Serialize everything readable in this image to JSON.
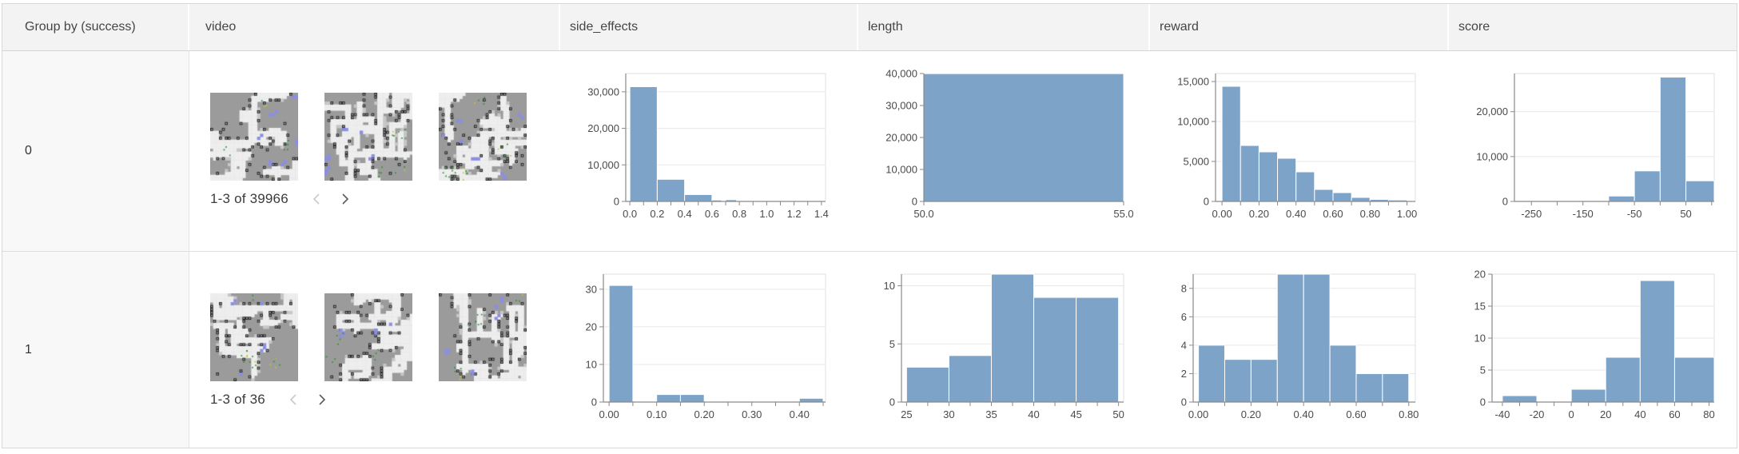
{
  "table": {
    "header": {
      "cells": [
        "Group by (success)",
        "video",
        "side_effects",
        "length",
        "reward",
        "score"
      ]
    }
  },
  "colors": {
    "bar": "#7da3c9",
    "header_bg": "#f3f3f3",
    "group_col_bg": "#f8f8f8",
    "grid": "#e7e7e7",
    "frame": "#e1e1e1",
    "axis": "#8a8a8a",
    "axis_label": "#4a4a4a",
    "thumb_grey": "#9b9b9b",
    "thumb_white": "#eeeeee",
    "thumb_light": "#c7c7c7",
    "thumb_dark": "#262626",
    "thumb_blue": "#8b8ee4",
    "thumb_green": "#2e9030",
    "thumb_yellow": "#c6c636"
  },
  "icons": [
    "chevron-left-icon",
    "chevron-right-icon"
  ],
  "rows": [
    {
      "group_label": "0",
      "video": {
        "pagination": "1-3 of 39966",
        "prev_enabled": false,
        "next_enabled": true,
        "thumb_seeds": [
          3,
          7,
          12
        ]
      },
      "charts": [
        {
          "name": "side_effects",
          "type": "histogram",
          "gutter": 62,
          "ylim": 35000,
          "yticks": [
            {
              "v": 0,
              "label": "0"
            },
            {
              "v": 10000,
              "label": "10,000"
            },
            {
              "v": 20000,
              "label": "20,000"
            },
            {
              "v": 30000,
              "label": "30,000"
            }
          ],
          "xlim": [
            -0.03,
            1.43
          ],
          "xticks": [
            {
              "v": 0.0,
              "label": "0.0"
            },
            {
              "v": 0.2,
              "label": "0.2"
            },
            {
              "v": 0.4,
              "label": "0.4"
            },
            {
              "v": 0.6,
              "label": "0.6"
            },
            {
              "v": 0.8,
              "label": "0.8"
            },
            {
              "v": 1.0,
              "label": "1.0"
            },
            {
              "v": 1.2,
              "label": "1.2"
            },
            {
              "v": 1.4,
              "label": "1.4"
            }
          ],
          "xminor": [
            0.1,
            0.3,
            0.5,
            0.7,
            0.9,
            1.1,
            1.3
          ],
          "bins": [
            [
              0.0,
              0.2,
              31400
            ],
            [
              0.2,
              0.4,
              6050
            ],
            [
              0.4,
              0.6,
              1880
            ],
            [
              0.6,
              0.67,
              380
            ],
            [
              0.7,
              0.78,
              470
            ],
            [
              0.8,
              1.43,
              90
            ]
          ]
        },
        {
          "name": "length",
          "type": "histogram",
          "gutter": 62,
          "ylim": 40000,
          "yticks": [
            {
              "v": 0,
              "label": "0"
            },
            {
              "v": 10000,
              "label": "10,000"
            },
            {
              "v": 20000,
              "label": "20,000"
            },
            {
              "v": 30000,
              "label": "30,000"
            },
            {
              "v": 40000,
              "label": "40,000"
            }
          ],
          "xlim": [
            50,
            55
          ],
          "xticks": [
            {
              "v": 50,
              "label": "50.0"
            },
            {
              "v": 55,
              "label": "55.0"
            }
          ],
          "xminor": [],
          "bins": [
            [
              50,
              55,
              39966
            ]
          ]
        },
        {
          "name": "reward",
          "type": "histogram",
          "gutter": 62,
          "ylim": 16000,
          "yticks": [
            {
              "v": 0,
              "label": "0"
            },
            {
              "v": 5000,
              "label": "5,000"
            },
            {
              "v": 10000,
              "label": "10,000"
            },
            {
              "v": 15000,
              "label": "15,000"
            }
          ],
          "xlim": [
            -0.035,
            1.045
          ],
          "xticks": [
            {
              "v": 0.0,
              "label": "0.00"
            },
            {
              "v": 0.2,
              "label": "0.20"
            },
            {
              "v": 0.4,
              "label": "0.40"
            },
            {
              "v": 0.6,
              "label": "0.60"
            },
            {
              "v": 0.8,
              "label": "0.80"
            },
            {
              "v": 1.0,
              "label": "1.00"
            }
          ],
          "xminor": [
            0.1,
            0.3,
            0.5,
            0.7,
            0.9
          ],
          "bins": [
            [
              0.0,
              0.1,
              14400
            ],
            [
              0.1,
              0.2,
              7000
            ],
            [
              0.2,
              0.3,
              6200
            ],
            [
              0.3,
              0.4,
              5400
            ],
            [
              0.4,
              0.5,
              3700
            ],
            [
              0.5,
              0.6,
              1500
            ],
            [
              0.6,
              0.7,
              1100
            ],
            [
              0.7,
              0.8,
              500
            ],
            [
              0.8,
              0.9,
              250
            ],
            [
              0.9,
              1.0,
              180
            ]
          ]
        },
        {
          "name": "score",
          "type": "histogram",
          "gutter": 62,
          "ylim": 28500,
          "yticks": [
            {
              "v": 0,
              "label": "0"
            },
            {
              "v": 10000,
              "label": "10,000"
            },
            {
              "v": 20000,
              "label": "20,000"
            }
          ],
          "xlim": [
            -283,
            105
          ],
          "xticks": [
            {
              "v": -250,
              "label": "-250"
            },
            {
              "v": -150,
              "label": "-150"
            },
            {
              "v": -50,
              "label": "-50"
            },
            {
              "v": 50,
              "label": "50"
            }
          ],
          "xminor": [
            -200,
            -100,
            0,
            100
          ],
          "bins": [
            [
              -283,
              -250,
              60
            ],
            [
              -250,
              -200,
              80
            ],
            [
              -200,
              -150,
              110
            ],
            [
              -150,
              -100,
              160
            ],
            [
              -100,
              -50,
              1200
            ],
            [
              -50,
              0,
              6800
            ],
            [
              0,
              50,
              27700
            ],
            [
              50,
              105,
              4600
            ]
          ]
        }
      ]
    },
    {
      "group_label": "1",
      "video": {
        "pagination": "1-3 of 36",
        "prev_enabled": false,
        "next_enabled": true,
        "thumb_seeds": [
          21,
          34,
          47
        ]
      },
      "charts": [
        {
          "name": "side_effects",
          "type": "histogram",
          "gutter": 34,
          "ylim": 34,
          "yticks": [
            {
              "v": 0,
              "label": "0"
            },
            {
              "v": 10,
              "label": "10"
            },
            {
              "v": 20,
              "label": "20"
            },
            {
              "v": 30,
              "label": "30"
            }
          ],
          "xlim": [
            -0.012,
            0.455
          ],
          "xticks": [
            {
              "v": 0.0,
              "label": "0.00"
            },
            {
              "v": 0.1,
              "label": "0.10"
            },
            {
              "v": 0.2,
              "label": "0.20"
            },
            {
              "v": 0.3,
              "label": "0.30"
            },
            {
              "v": 0.4,
              "label": "0.40"
            }
          ],
          "xminor": [
            0.05,
            0.15,
            0.25,
            0.35,
            0.45
          ],
          "bins": [
            [
              0.0,
              0.05,
              31
            ],
            [
              0.1,
              0.15,
              2
            ],
            [
              0.15,
              0.2,
              2
            ],
            [
              0.4,
              0.45,
              1
            ]
          ]
        },
        {
          "name": "length",
          "type": "histogram",
          "gutter": 34,
          "ylim": 11,
          "yticks": [
            {
              "v": 0,
              "label": "0"
            },
            {
              "v": 5,
              "label": "5"
            },
            {
              "v": 10,
              "label": "10"
            }
          ],
          "xlim": [
            24.4,
            50.6
          ],
          "xticks": [
            {
              "v": 25,
              "label": "25"
            },
            {
              "v": 30,
              "label": "30"
            },
            {
              "v": 35,
              "label": "35"
            },
            {
              "v": 40,
              "label": "40"
            },
            {
              "v": 45,
              "label": "45"
            },
            {
              "v": 50,
              "label": "50"
            }
          ],
          "xminor": [
            27.5,
            32.5,
            37.5,
            42.5,
            47.5
          ],
          "bins": [
            [
              25,
              30,
              3
            ],
            [
              30,
              35,
              4
            ],
            [
              35,
              40,
              11
            ],
            [
              40,
              45,
              9
            ],
            [
              45,
              50,
              9
            ]
          ]
        },
        {
          "name": "reward",
          "type": "histogram",
          "gutter": 34,
          "ylim": 9,
          "yticks": [
            {
              "v": 0,
              "label": "0"
            },
            {
              "v": 2,
              "label": "2"
            },
            {
              "v": 4,
              "label": "4"
            },
            {
              "v": 6,
              "label": "6"
            },
            {
              "v": 8,
              "label": "8"
            }
          ],
          "xlim": [
            -0.02,
            0.825
          ],
          "xticks": [
            {
              "v": 0.0,
              "label": "0.00"
            },
            {
              "v": 0.2,
              "label": "0.20"
            },
            {
              "v": 0.4,
              "label": "0.40"
            },
            {
              "v": 0.6,
              "label": "0.60"
            },
            {
              "v": 0.8,
              "label": "0.80"
            }
          ],
          "xminor": [
            0.1,
            0.3,
            0.5,
            0.7
          ],
          "bins": [
            [
              0.0,
              0.1,
              4
            ],
            [
              0.1,
              0.2,
              3
            ],
            [
              0.2,
              0.3,
              3
            ],
            [
              0.3,
              0.4,
              9
            ],
            [
              0.4,
              0.5,
              9
            ],
            [
              0.5,
              0.6,
              4
            ],
            [
              0.6,
              0.7,
              2
            ],
            [
              0.7,
              0.8,
              2
            ]
          ]
        },
        {
          "name": "score",
          "type": "histogram",
          "gutter": 34,
          "ylim": 20,
          "yticks": [
            {
              "v": 0,
              "label": "0"
            },
            {
              "v": 5,
              "label": "5"
            },
            {
              "v": 10,
              "label": "10"
            },
            {
              "v": 15,
              "label": "15"
            },
            {
              "v": 20,
              "label": "20"
            }
          ],
          "xlim": [
            -46,
            83
          ],
          "xticks": [
            {
              "v": -40,
              "label": "-40"
            },
            {
              "v": -20,
              "label": "-20"
            },
            {
              "v": 0,
              "label": "0"
            },
            {
              "v": 20,
              "label": "20"
            },
            {
              "v": 40,
              "label": "40"
            },
            {
              "v": 60,
              "label": "60"
            },
            {
              "v": 80,
              "label": "80"
            }
          ],
          "xminor": [
            -30,
            -10,
            10,
            30,
            50,
            70
          ],
          "bins": [
            [
              -40,
              -20,
              1
            ],
            [
              0,
              20,
              2
            ],
            [
              20,
              40,
              7
            ],
            [
              40,
              60,
              19
            ],
            [
              60,
              83,
              7
            ]
          ]
        }
      ]
    }
  ]
}
